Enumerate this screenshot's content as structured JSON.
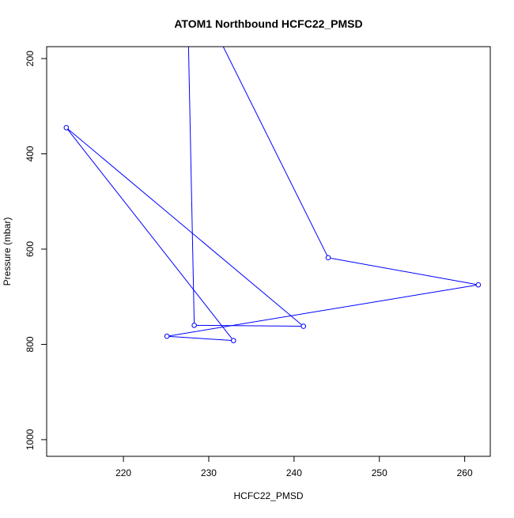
{
  "chart_data": {
    "type": "line",
    "title": "ATOM1 Northbound HCFC22_PMSD",
    "xlabel": "HCFC22_PMSD",
    "ylabel": "Pressure (mbar)",
    "xlim": [
      211,
      263
    ],
    "ylim": [
      175,
      1035
    ],
    "y_reversed": true,
    "x_ticks": [
      220,
      230,
      240,
      250,
      260
    ],
    "y_ticks": [
      200,
      400,
      600,
      800,
      1000
    ],
    "grid": false,
    "legend": "none",
    "series": [
      {
        "color": "#0000ff",
        "marker": "open-circle",
        "points": [
          {
            "x": 227.6,
            "y": 150,
            "marker": false
          },
          {
            "x": 228.3,
            "y": 760,
            "marker": true
          },
          {
            "x": 241.1,
            "y": 762,
            "marker": true
          },
          {
            "x": 213.3,
            "y": 345,
            "marker": true
          },
          {
            "x": 232.9,
            "y": 792,
            "marker": true
          },
          {
            "x": 225.1,
            "y": 783,
            "marker": true
          },
          {
            "x": 261.6,
            "y": 675,
            "marker": true
          },
          {
            "x": 244.0,
            "y": 618,
            "marker": true
          },
          {
            "x": 231.0,
            "y": 150,
            "marker": false
          }
        ]
      }
    ]
  }
}
